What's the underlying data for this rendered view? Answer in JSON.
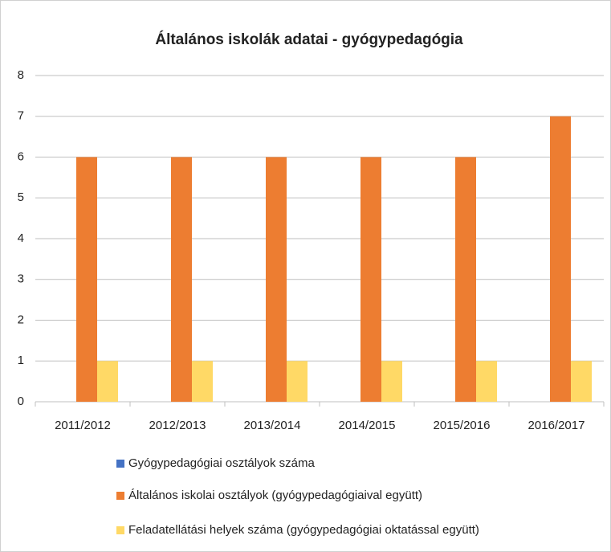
{
  "chart_data": {
    "type": "bar",
    "title": "Általános iskolák adatai - gyógypedagógia",
    "categories": [
      "2011/2012",
      "2012/2013",
      "2013/2014",
      "2014/2015",
      "2015/2016",
      "2016/2017"
    ],
    "series": [
      {
        "name": "Gyógypedagógiai osztályok száma",
        "color": "#4472c4",
        "values": [
          0,
          0,
          0,
          0,
          0,
          0
        ]
      },
      {
        "name": "Általános iskolai osztályok (gyógypedagógiaival együtt)",
        "color": "#ed7d31",
        "values": [
          6,
          6,
          6,
          6,
          6,
          7
        ]
      },
      {
        "name": "Feladatellátási helyek száma (gyógypedagógiai oktatással együtt)",
        "color": "#ffd966",
        "values": [
          1,
          1,
          1,
          1,
          1,
          1
        ]
      }
    ],
    "ylim": [
      0,
      8
    ],
    "yticks": [
      0,
      1,
      2,
      3,
      4,
      5,
      6,
      7,
      8
    ],
    "grid": true
  }
}
